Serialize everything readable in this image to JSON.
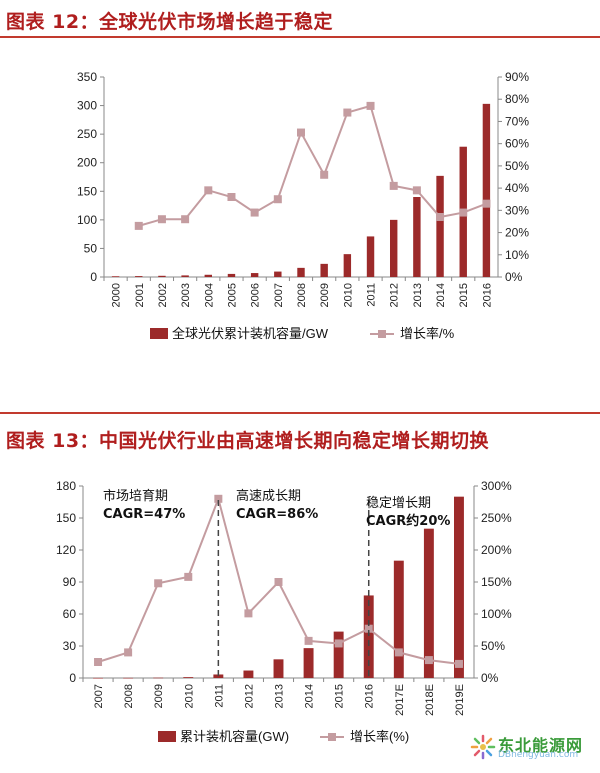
{
  "chart_data": [
    {
      "type": "bar",
      "title": "图表 12：全球光伏市场增长趋于稳定",
      "categories": [
        "2000",
        "2001",
        "2002",
        "2003",
        "2004",
        "2005",
        "2006",
        "2007",
        "2008",
        "2009",
        "2010",
        "2011",
        "2012",
        "2013",
        "2014",
        "2015",
        "2016"
      ],
      "series": [
        {
          "name": "全球光伏累计装机容量/GW",
          "type": "bar",
          "axis": "left",
          "color": "#9c2a2a",
          "values": [
            1.3,
            1.6,
            2.1,
            2.8,
            3.9,
            5.4,
            6.9,
            9.5,
            16,
            23,
            40,
            71,
            100,
            140,
            177,
            228,
            303
          ]
        },
        {
          "name": "增长率/%",
          "type": "line",
          "axis": "right",
          "color": "#c49ca0",
          "values": [
            null,
            23,
            26,
            26,
            39,
            36,
            29,
            35,
            65,
            46,
            74,
            77,
            41,
            39,
            27,
            29,
            33
          ]
        }
      ],
      "ylim_left": [
        0,
        350
      ],
      "yticks_left": [
        "0",
        "50",
        "100",
        "150",
        "200",
        "250",
        "300",
        "350"
      ],
      "ylim_right": [
        0,
        90
      ],
      "yticks_right": [
        "0%",
        "10%",
        "20%",
        "30%",
        "40%",
        "50%",
        "60%",
        "70%",
        "80%",
        "90%"
      ],
      "legend": "bottom",
      "grid": false
    },
    {
      "type": "bar",
      "title": "图表 13：中国光伏行业由高速增长期向稳定增长期切换",
      "categories": [
        "2007",
        "2008",
        "2009",
        "2010",
        "2011",
        "2012",
        "2013",
        "2014",
        "2015",
        "2016",
        "2017E",
        "2018E",
        "2019E"
      ],
      "series": [
        {
          "name": "累计装机容量(GW)",
          "type": "bar",
          "axis": "left",
          "color": "#9c2a2a",
          "values": [
            0.1,
            0.14,
            0.3,
            0.8,
            3.3,
            7,
            17.5,
            28,
            43.5,
            77.4,
            110,
            140,
            170
          ]
        },
        {
          "name": "增长率(%)",
          "type": "line",
          "axis": "right",
          "color": "#c49ca0",
          "values": [
            25,
            40,
            148,
            158,
            280,
            101,
            150,
            58,
            54,
            77,
            40,
            28,
            22
          ]
        }
      ],
      "ylim_left": [
        0,
        180
      ],
      "yticks_left": [
        "0",
        "30",
        "60",
        "90",
        "120",
        "150",
        "180"
      ],
      "ylim_right": [
        0,
        300
      ],
      "yticks_right": [
        "0%",
        "50%",
        "100%",
        "150%",
        "200%",
        "250%",
        "300%"
      ],
      "annotations": [
        {
          "line1": "市场培育期",
          "line2": "CAGR=47%"
        },
        {
          "line1": "高速成长期",
          "line2": "CAGR=86%"
        },
        {
          "line1": "稳定增长期",
          "line2": "CAGR约20%"
        }
      ],
      "dividers_after": [
        "2011",
        "2016"
      ],
      "legend": "bottom",
      "grid": false
    }
  ],
  "watermark": {
    "text": "东北能源网",
    "sub": "DBnengyuan.com"
  }
}
